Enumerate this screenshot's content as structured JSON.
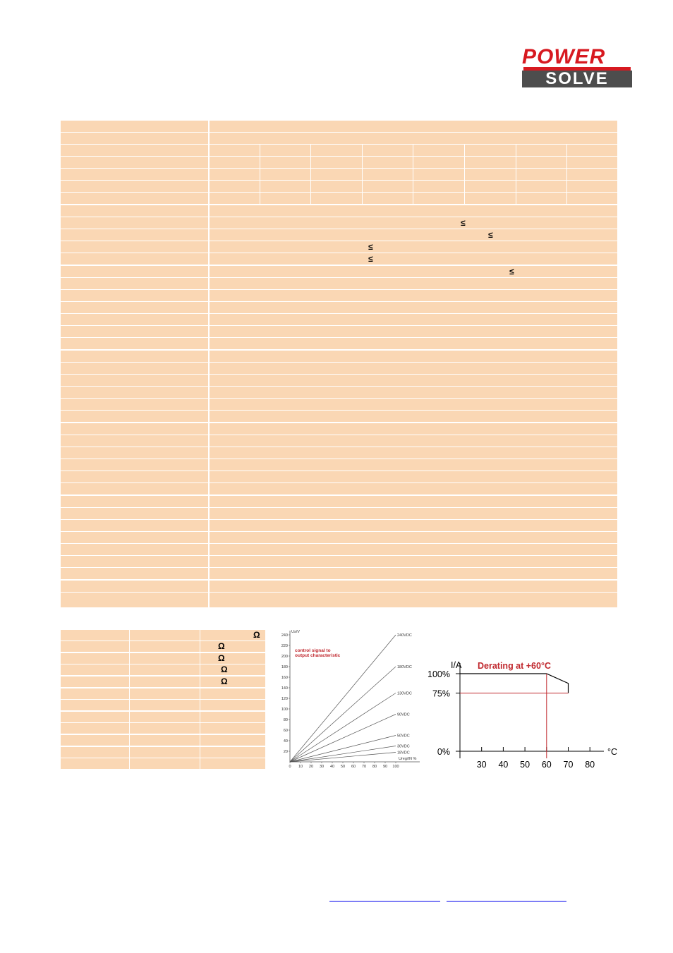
{
  "logo": {
    "line1": "POWER",
    "line2": "SOLVE"
  },
  "spec_table": {
    "le_symbol": "≤",
    "le_rows": [
      8,
      9,
      10,
      11,
      12
    ]
  },
  "small_table": {
    "ohm_symbol": "Ω",
    "ohm_rows": [
      0,
      1,
      2,
      3,
      4
    ]
  },
  "chart_data": [
    {
      "type": "line",
      "title": "control signal to output characteristic",
      "title_line1": "control signal to",
      "title_line2": "output characteristic",
      "ylabel": "Us/V",
      "xlabel": "Ureg/IN %",
      "xlim": [
        0,
        100
      ],
      "ylim": [
        0,
        240
      ],
      "x_ticks": [
        "0",
        "10",
        "20",
        "30",
        "40",
        "50",
        "60",
        "70",
        "80",
        "90",
        "100"
      ],
      "y_ticks": [
        "20",
        "40",
        "60",
        "80",
        "100",
        "120",
        "140",
        "160",
        "180",
        "200",
        "220",
        "240"
      ],
      "series": [
        {
          "name": "240VDC",
          "x": [
            0,
            100
          ],
          "y": [
            0,
            240
          ]
        },
        {
          "name": "180VDC",
          "x": [
            0,
            100
          ],
          "y": [
            0,
            180
          ]
        },
        {
          "name": "130VDC",
          "x": [
            0,
            100
          ],
          "y": [
            0,
            130
          ]
        },
        {
          "name": "90VDC",
          "x": [
            0,
            100
          ],
          "y": [
            0,
            90
          ]
        },
        {
          "name": "50VDC",
          "x": [
            0,
            100
          ],
          "y": [
            0,
            50
          ]
        },
        {
          "name": "30VDC",
          "x": [
            0,
            100
          ],
          "y": [
            0,
            30
          ]
        },
        {
          "name": "18VDC",
          "x": [
            0,
            100
          ],
          "y": [
            0,
            18
          ]
        }
      ]
    },
    {
      "type": "line",
      "title": "Derating at +60°C",
      "ylabel": "I/A",
      "xlabel": "°C",
      "x_ticks": [
        "30",
        "40",
        "50",
        "60",
        "70",
        "80"
      ],
      "y_ticks": [
        "100%",
        "75%",
        "0%"
      ],
      "series": [
        {
          "x": [
            20,
            60,
            70,
            70
          ],
          "y": [
            100,
            100,
            87.5,
            75
          ]
        }
      ],
      "markers": {
        "x": 60,
        "y": 75,
        "color": "#c0272d"
      },
      "title_color": "#c0272d"
    }
  ]
}
